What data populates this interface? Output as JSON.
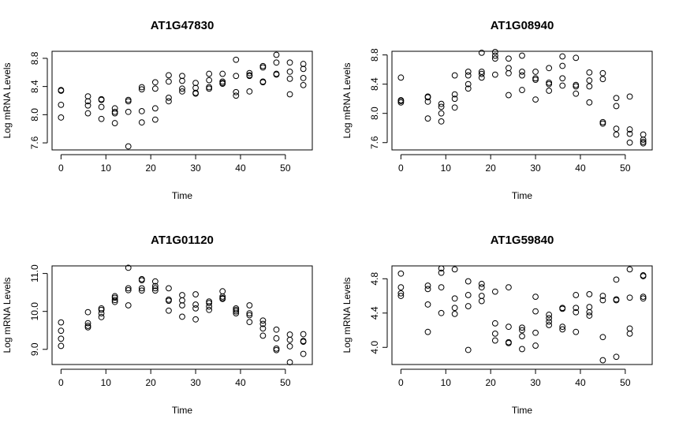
{
  "chart_data": [
    {
      "type": "scatter",
      "title": "AT1G47830",
      "xlabel": "Time",
      "ylabel": "Log mRNA Levels",
      "xlim": [
        -2,
        56
      ],
      "ylim": [
        7.5,
        8.9
      ],
      "xticks": [
        "0",
        "10",
        "20",
        "30",
        "40",
        "50"
      ],
      "yticks": [
        "7.6",
        "8.0",
        "8.4",
        "8.8"
      ],
      "points": [
        [
          0,
          8.35
        ],
        [
          0,
          8.34
        ],
        [
          0,
          8.14
        ],
        [
          0,
          7.96
        ],
        [
          6,
          8.26
        ],
        [
          6,
          8.19
        ],
        [
          6,
          8.13
        ],
        [
          6,
          8.02
        ],
        [
          9,
          8.22
        ],
        [
          9,
          8.21
        ],
        [
          9,
          8.11
        ],
        [
          9,
          7.94
        ],
        [
          12,
          8.09
        ],
        [
          12,
          8.04
        ],
        [
          12,
          8.02
        ],
        [
          12,
          7.88
        ],
        [
          15,
          8.21
        ],
        [
          15,
          8.19
        ],
        [
          15,
          8.04
        ],
        [
          15,
          7.55
        ],
        [
          18,
          8.39
        ],
        [
          18,
          8.36
        ],
        [
          18,
          8.05
        ],
        [
          18,
          7.89
        ],
        [
          21,
          8.46
        ],
        [
          21,
          8.37
        ],
        [
          21,
          8.09
        ],
        [
          21,
          7.93
        ],
        [
          24,
          8.56
        ],
        [
          24,
          8.47
        ],
        [
          24,
          8.24
        ],
        [
          24,
          8.19
        ],
        [
          27,
          8.55
        ],
        [
          27,
          8.48
        ],
        [
          27,
          8.37
        ],
        [
          27,
          8.33
        ],
        [
          30,
          8.45
        ],
        [
          30,
          8.38
        ],
        [
          30,
          8.31
        ],
        [
          30,
          8.3
        ],
        [
          33,
          8.58
        ],
        [
          33,
          8.49
        ],
        [
          33,
          8.39
        ],
        [
          33,
          8.37
        ],
        [
          36,
          8.58
        ],
        [
          36,
          8.47
        ],
        [
          36,
          8.45
        ],
        [
          36,
          8.44
        ],
        [
          39,
          8.78
        ],
        [
          39,
          8.55
        ],
        [
          39,
          8.32
        ],
        [
          39,
          8.27
        ],
        [
          42,
          8.59
        ],
        [
          42,
          8.56
        ],
        [
          42,
          8.55
        ],
        [
          42,
          8.33
        ],
        [
          45,
          8.69
        ],
        [
          45,
          8.67
        ],
        [
          45,
          8.47
        ],
        [
          45,
          8.46
        ],
        [
          48,
          8.85
        ],
        [
          48,
          8.74
        ],
        [
          48,
          8.58
        ],
        [
          48,
          8.57
        ],
        [
          51,
          8.74
        ],
        [
          51,
          8.61
        ],
        [
          51,
          8.51
        ],
        [
          51,
          8.29
        ],
        [
          54,
          8.72
        ],
        [
          54,
          8.65
        ],
        [
          54,
          8.52
        ],
        [
          54,
          8.42
        ]
      ]
    },
    {
      "type": "scatter",
      "title": "AT1G08940",
      "xlabel": "Time",
      "ylabel": "Log mRNA Levels",
      "xlim": [
        -2,
        56
      ],
      "ylim": [
        7.5,
        8.85
      ],
      "xticks": [
        "0",
        "10",
        "20",
        "30",
        "40",
        "50"
      ],
      "yticks": [
        "7.6",
        "8.0",
        "8.4",
        "8.8"
      ],
      "points": [
        [
          0,
          8.49
        ],
        [
          0,
          8.18
        ],
        [
          0,
          8.17
        ],
        [
          0,
          8.15
        ],
        [
          6,
          8.23
        ],
        [
          6,
          8.22
        ],
        [
          6,
          8.16
        ],
        [
          6,
          7.93
        ],
        [
          9,
          8.13
        ],
        [
          9,
          8.09
        ],
        [
          9,
          8.0
        ],
        [
          9,
          7.89
        ],
        [
          12,
          8.52
        ],
        [
          12,
          8.26
        ],
        [
          12,
          8.2
        ],
        [
          12,
          8.08
        ],
        [
          15,
          8.57
        ],
        [
          15,
          8.52
        ],
        [
          15,
          8.4
        ],
        [
          15,
          8.34
        ],
        [
          18,
          8.83
        ],
        [
          18,
          8.57
        ],
        [
          18,
          8.54
        ],
        [
          18,
          8.49
        ],
        [
          21,
          8.84
        ],
        [
          21,
          8.79
        ],
        [
          21,
          8.75
        ],
        [
          21,
          8.53
        ],
        [
          24,
          8.75
        ],
        [
          24,
          8.62
        ],
        [
          24,
          8.55
        ],
        [
          24,
          8.25
        ],
        [
          27,
          8.79
        ],
        [
          27,
          8.57
        ],
        [
          27,
          8.52
        ],
        [
          27,
          8.32
        ],
        [
          30,
          8.57
        ],
        [
          30,
          8.48
        ],
        [
          30,
          8.46
        ],
        [
          30,
          8.19
        ],
        [
          33,
          8.62
        ],
        [
          33,
          8.42
        ],
        [
          33,
          8.4
        ],
        [
          33,
          8.31
        ],
        [
          36,
          8.78
        ],
        [
          36,
          8.65
        ],
        [
          36,
          8.48
        ],
        [
          36,
          8.38
        ],
        [
          39,
          8.76
        ],
        [
          39,
          8.39
        ],
        [
          39,
          8.37
        ],
        [
          39,
          8.27
        ],
        [
          42,
          8.56
        ],
        [
          42,
          8.45
        ],
        [
          42,
          8.37
        ],
        [
          42,
          8.15
        ],
        [
          45,
          8.55
        ],
        [
          45,
          8.47
        ],
        [
          45,
          7.88
        ],
        [
          45,
          7.86
        ],
        [
          48,
          8.21
        ],
        [
          48,
          8.1
        ],
        [
          48,
          7.79
        ],
        [
          48,
          7.71
        ],
        [
          51,
          8.23
        ],
        [
          51,
          7.78
        ],
        [
          51,
          7.72
        ],
        [
          51,
          7.6
        ],
        [
          54,
          7.71
        ],
        [
          54,
          7.64
        ],
        [
          54,
          7.61
        ],
        [
          54,
          7.59
        ]
      ]
    },
    {
      "type": "scatter",
      "title": "AT1G01120",
      "xlabel": "Time",
      "ylabel": "Log mRNA Levels",
      "xlim": [
        -2,
        56
      ],
      "ylim": [
        8.6,
        11.2
      ],
      "xticks": [
        "0",
        "10",
        "20",
        "30",
        "40",
        "50"
      ],
      "yticks": [
        "9.0",
        "10.0",
        "11.0"
      ],
      "points": [
        [
          0,
          9.71
        ],
        [
          0,
          9.49
        ],
        [
          0,
          9.28
        ],
        [
          0,
          9.09
        ],
        [
          6,
          9.98
        ],
        [
          6,
          9.69
        ],
        [
          6,
          9.62
        ],
        [
          6,
          9.58
        ],
        [
          9,
          10.08
        ],
        [
          9,
          10.04
        ],
        [
          9,
          9.95
        ],
        [
          9,
          9.85
        ],
        [
          12,
          10.4
        ],
        [
          12,
          10.36
        ],
        [
          12,
          10.3
        ],
        [
          12,
          10.25
        ],
        [
          15,
          11.15
        ],
        [
          15,
          10.61
        ],
        [
          15,
          10.56
        ],
        [
          15,
          10.16
        ],
        [
          18,
          10.85
        ],
        [
          18,
          10.82
        ],
        [
          18,
          10.61
        ],
        [
          18,
          10.55
        ],
        [
          21,
          10.79
        ],
        [
          21,
          10.67
        ],
        [
          21,
          10.61
        ],
        [
          21,
          10.55
        ],
        [
          24,
          10.61
        ],
        [
          24,
          10.31
        ],
        [
          24,
          10.28
        ],
        [
          24,
          10.02
        ],
        [
          27,
          10.43
        ],
        [
          27,
          10.29
        ],
        [
          27,
          10.16
        ],
        [
          27,
          9.86
        ],
        [
          30,
          10.45
        ],
        [
          30,
          10.18
        ],
        [
          30,
          10.08
        ],
        [
          30,
          9.79
        ],
        [
          33,
          10.26
        ],
        [
          33,
          10.22
        ],
        [
          33,
          10.13
        ],
        [
          33,
          10.04
        ],
        [
          36,
          10.53
        ],
        [
          36,
          10.39
        ],
        [
          36,
          10.35
        ],
        [
          36,
          10.33
        ],
        [
          39,
          10.08
        ],
        [
          39,
          10.04
        ],
        [
          39,
          10.0
        ],
        [
          39,
          9.95
        ],
        [
          42,
          10.16
        ],
        [
          42,
          9.95
        ],
        [
          42,
          9.9
        ],
        [
          42,
          9.72
        ],
        [
          45,
          9.76
        ],
        [
          45,
          9.67
        ],
        [
          45,
          9.55
        ],
        [
          45,
          9.36
        ],
        [
          48,
          9.52
        ],
        [
          48,
          9.29
        ],
        [
          48,
          9.02
        ],
        [
          48,
          8.98
        ],
        [
          51,
          9.39
        ],
        [
          51,
          9.25
        ],
        [
          51,
          9.08
        ],
        [
          51,
          8.66
        ],
        [
          54,
          9.4
        ],
        [
          54,
          9.22
        ],
        [
          54,
          9.2
        ],
        [
          54,
          8.88
        ]
      ]
    },
    {
      "type": "scatter",
      "title": "AT1G59840",
      "xlabel": "Time",
      "ylabel": "Log mRNA Levels",
      "xlim": [
        -2,
        56
      ],
      "ylim": [
        3.8,
        4.95
      ],
      "xticks": [
        "0",
        "10",
        "20",
        "30",
        "40",
        "50"
      ],
      "yticks": [
        "4.0",
        "4.4",
        "4.8"
      ],
      "points": [
        [
          0,
          4.86
        ],
        [
          0,
          4.7
        ],
        [
          0,
          4.63
        ],
        [
          0,
          4.6
        ],
        [
          6,
          4.72
        ],
        [
          6,
          4.68
        ],
        [
          6,
          4.5
        ],
        [
          6,
          4.18
        ],
        [
          9,
          4.92
        ],
        [
          9,
          4.87
        ],
        [
          9,
          4.7
        ],
        [
          9,
          4.4
        ],
        [
          12,
          4.91
        ],
        [
          12,
          4.57
        ],
        [
          12,
          4.46
        ],
        [
          12,
          4.39
        ],
        [
          15,
          4.77
        ],
        [
          15,
          4.61
        ],
        [
          15,
          4.48
        ],
        [
          15,
          3.97
        ],
        [
          18,
          4.74
        ],
        [
          18,
          4.7
        ],
        [
          18,
          4.6
        ],
        [
          18,
          4.54
        ],
        [
          21,
          4.65
        ],
        [
          21,
          4.28
        ],
        [
          21,
          4.16
        ],
        [
          21,
          4.08
        ],
        [
          24,
          4.7
        ],
        [
          24,
          4.24
        ],
        [
          24,
          4.06
        ],
        [
          24,
          4.05
        ],
        [
          27,
          4.23
        ],
        [
          27,
          4.2
        ],
        [
          27,
          4.13
        ],
        [
          27,
          3.98
        ],
        [
          30,
          4.59
        ],
        [
          30,
          4.42
        ],
        [
          30,
          4.17
        ],
        [
          30,
          4.02
        ],
        [
          33,
          4.38
        ],
        [
          33,
          4.34
        ],
        [
          33,
          4.3
        ],
        [
          33,
          4.26
        ],
        [
          36,
          4.46
        ],
        [
          36,
          4.45
        ],
        [
          36,
          4.24
        ],
        [
          36,
          4.21
        ],
        [
          39,
          4.61
        ],
        [
          39,
          4.46
        ],
        [
          39,
          4.41
        ],
        [
          39,
          4.18
        ],
        [
          42,
          4.62
        ],
        [
          42,
          4.47
        ],
        [
          42,
          4.41
        ],
        [
          42,
          4.37
        ],
        [
          45,
          4.6
        ],
        [
          45,
          4.55
        ],
        [
          45,
          4.12
        ],
        [
          45,
          3.85
        ],
        [
          48,
          4.79
        ],
        [
          48,
          4.56
        ],
        [
          48,
          4.55
        ],
        [
          48,
          3.89
        ],
        [
          51,
          4.91
        ],
        [
          51,
          4.58
        ],
        [
          51,
          4.22
        ],
        [
          51,
          4.16
        ],
        [
          54,
          4.84
        ],
        [
          54,
          4.83
        ],
        [
          54,
          4.59
        ],
        [
          54,
          4.57
        ]
      ]
    }
  ]
}
